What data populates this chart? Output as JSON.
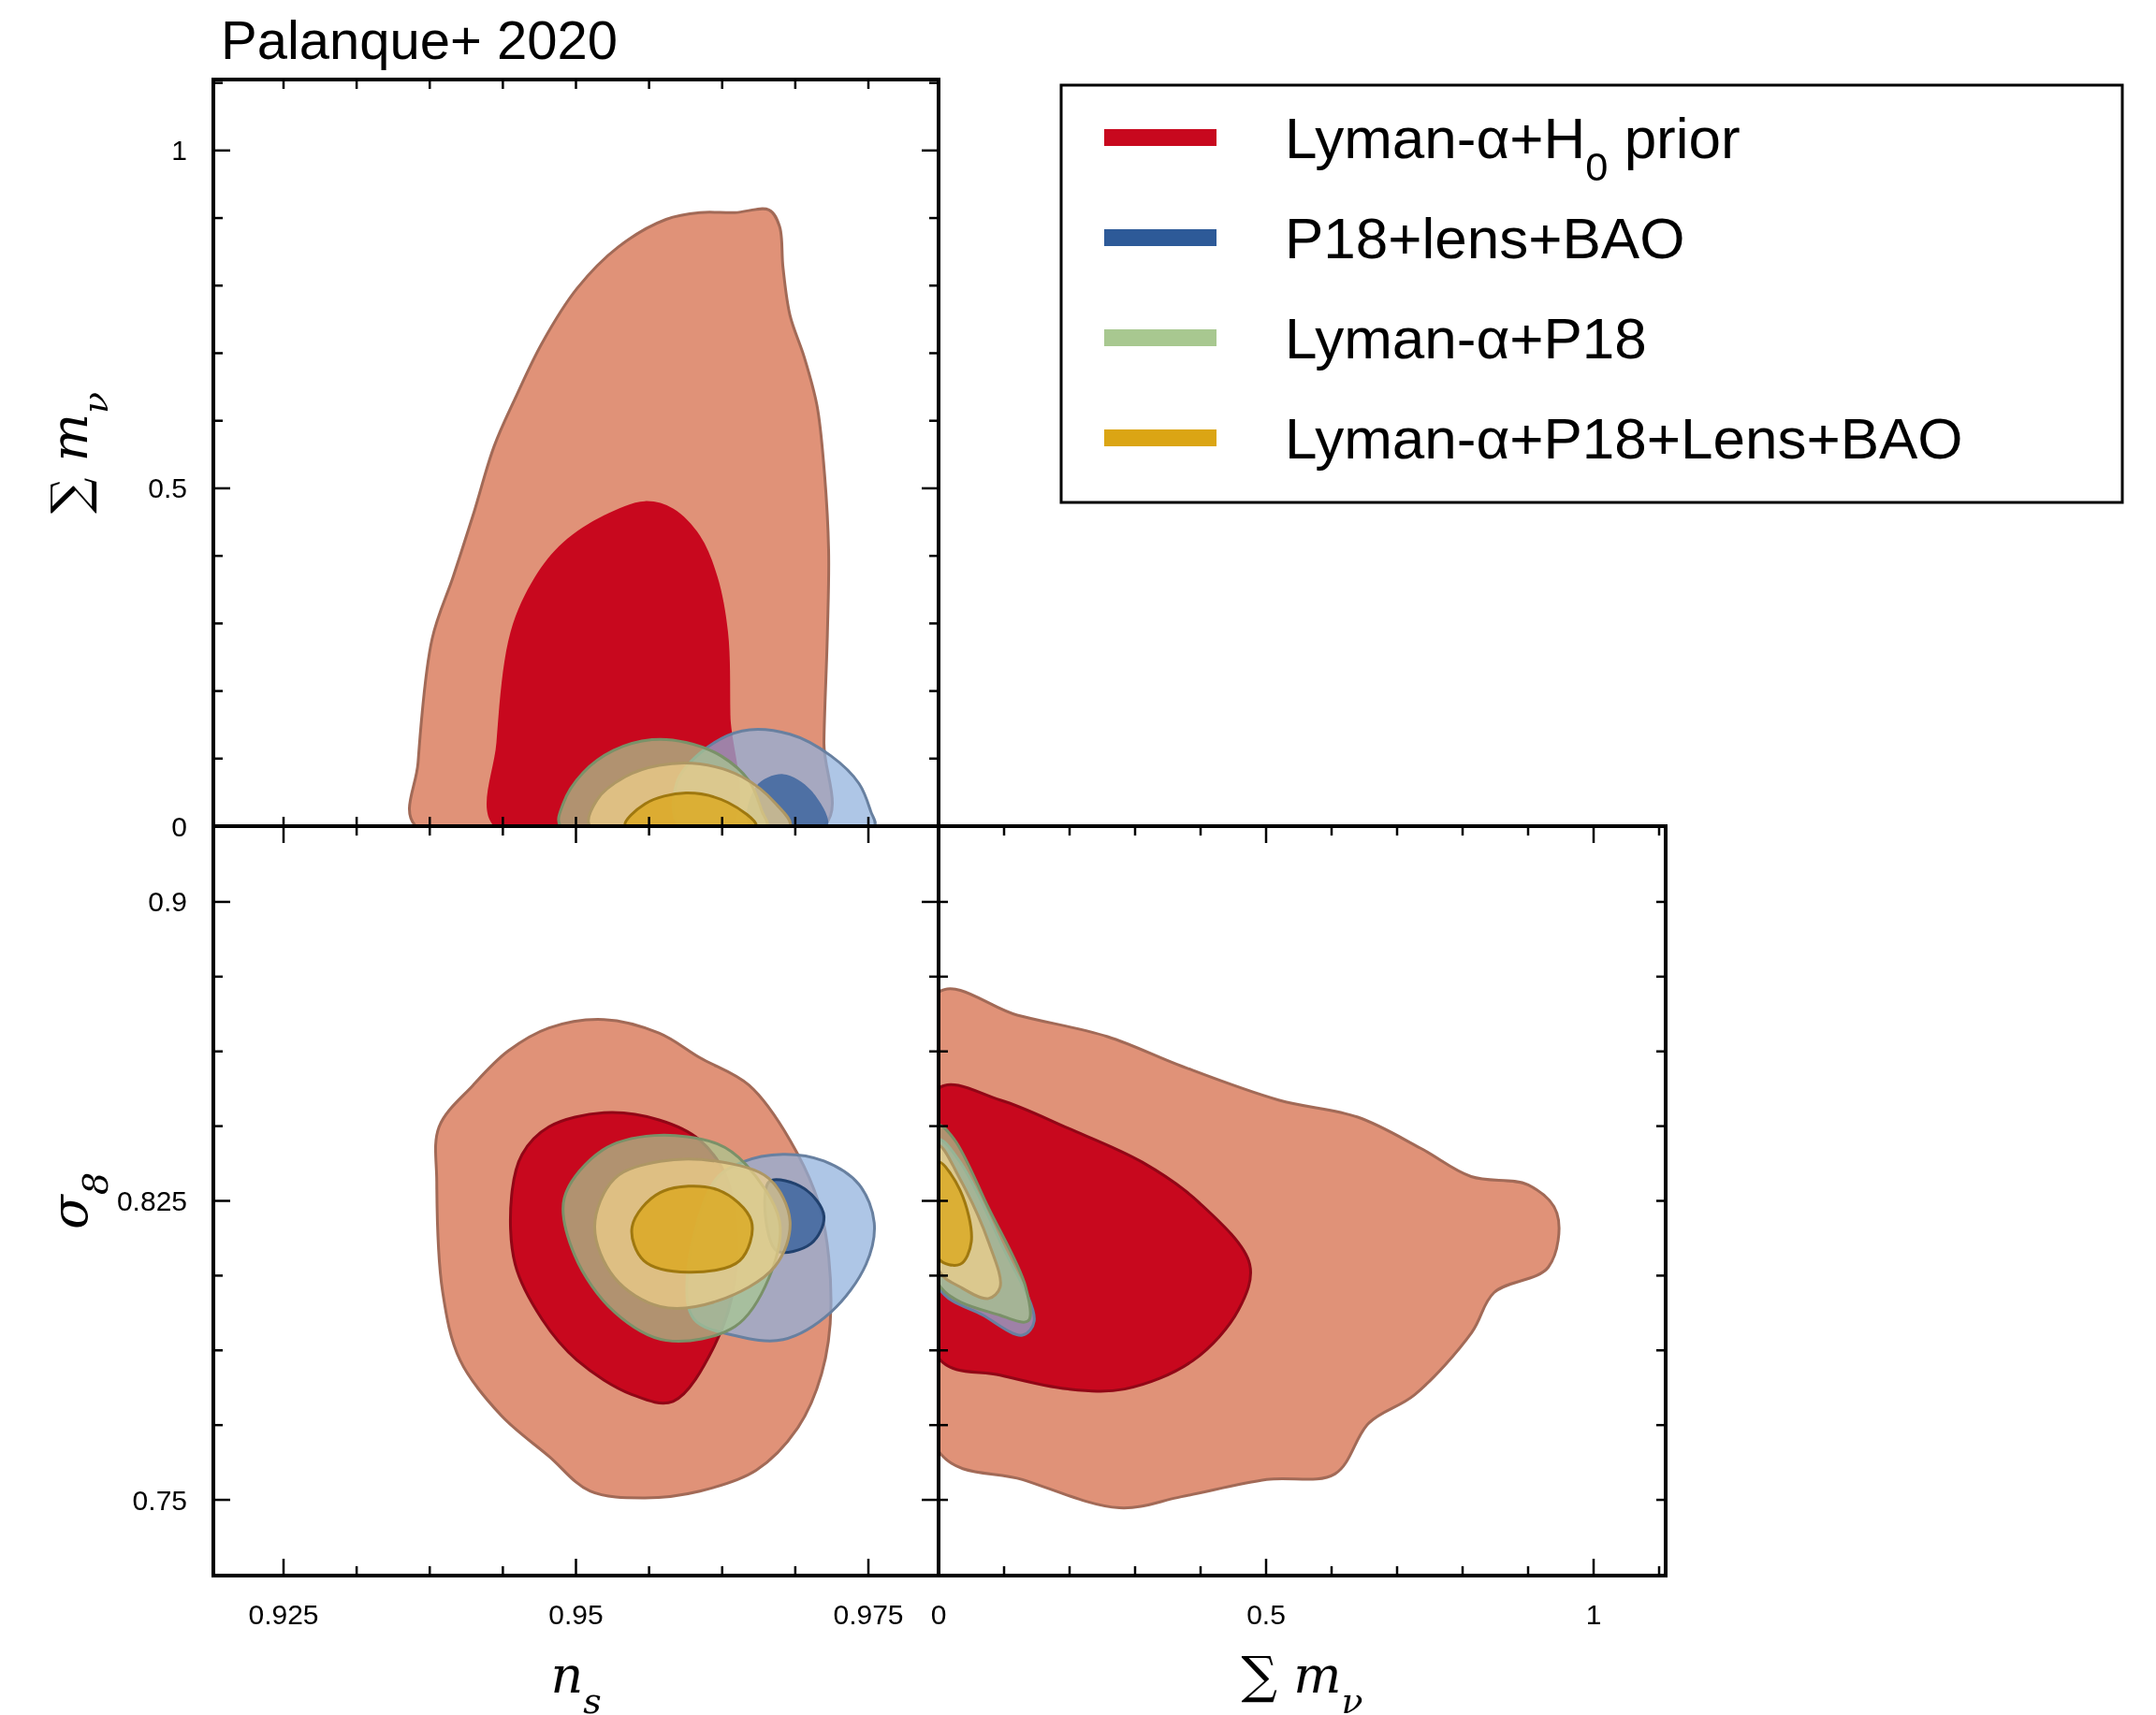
{
  "chart_data": [
    {
      "type": "area",
      "title": "Palanque+ 2020",
      "ylabel": "∑ m$_{ν}$",
      "legend": "right",
      "tick_labels": "y",
      "xlim": [
        0.919,
        0.981
      ],
      "ylim": [
        0,
        1.105
      ],
      "xticks": [
        {
          "value": 0.925,
          "label": null
        },
        {
          "value": 0.93125,
          "label": null
        },
        {
          "value": 0.9375,
          "label": null
        },
        {
          "value": 0.94375,
          "label": null
        },
        {
          "value": 0.95,
          "label": null
        },
        {
          "value": 0.95625,
          "label": null
        },
        {
          "value": 0.9625,
          "label": null
        },
        {
          "value": 0.96875,
          "label": null
        },
        {
          "value": 0.975,
          "label": null
        }
      ],
      "yticks": [
        0,
        {
          "value": 0.1,
          "label": null
        },
        {
          "value": 0.2,
          "label": null
        },
        {
          "value": 0.3,
          "label": null
        },
        {
          "value": 0.4,
          "label": null
        },
        0.5,
        {
          "value": 0.6,
          "label": null
        },
        {
          "value": 0.7,
          "label": null
        },
        {
          "value": 0.8,
          "label": null
        },
        {
          "value": 0.9,
          "label": null
        },
        1,
        {
          "value": 1.1,
          "label": null
        }
      ],
      "series": [
        {
          "color": "#e09278",
          "x": [
            0.9363,
            0.9365,
            0.9377,
            0.9395,
            0.9412,
            0.943,
            0.9448,
            0.9471,
            0.9501,
            0.9536,
            0.9577,
            0.9606,
            0.9636,
            0.9665,
            0.9674,
            0.9677,
            0.9683,
            0.9695,
            0.9706,
            0.9712,
            0.9716,
            0.9715,
            0.9712,
            0.9712
          ],
          "values": [
            0,
            0.094,
            0.277,
            0.369,
            0.46,
            0.562,
            0.633,
            0.715,
            0.796,
            0.857,
            0.898,
            0.908,
            0.908,
            0.912,
            0.888,
            0.827,
            0.756,
            0.695,
            0.623,
            0.532,
            0.409,
            0.287,
            0.124,
            0
          ]
        },
        {
          "name": "Lyman-α+H$_{0}$ prior",
          "color": "#c8081e",
          "x": [
            0.943,
            0.9432,
            0.9444,
            0.9465,
            0.9489,
            0.9524,
            0.9559,
            0.9583,
            0.9606,
            0.9621,
            0.963,
            0.9632,
            0.9632
          ],
          "values": [
            0,
            0.124,
            0.287,
            0.369,
            0.42,
            0.46,
            0.481,
            0.47,
            0.43,
            0.369,
            0.287,
            0.165,
            0
          ]
        },
        {
          "color": "#8fb0dc",
          "x": [
            0.9589,
            0.9586,
            0.9606,
            0.9642,
            0.9683,
            0.9718,
            0.9742,
            0.9752,
            0.9755
          ],
          "values": [
            0,
            0.063,
            0.108,
            0.141,
            0.136,
            0.104,
            0.063,
            0.022,
            0
          ]
        },
        {
          "name": "P18+lens+BAO",
          "color": "#2d5a98",
          "x": [
            0.9648,
            0.9654,
            0.9677,
            0.9701,
            0.9715
          ],
          "values": [
            0,
            0.059,
            0.077,
            0.053,
            0
          ]
        },
        {
          "name": "Lyman-α+P18",
          "color": "#a8c890",
          "x": [
            0.9487,
            0.9489,
            0.9506,
            0.9532,
            0.9565,
            0.9594,
            0.9624,
            0.9648,
            0.9659,
            0.9663
          ],
          "values": [
            0,
            0.033,
            0.079,
            0.112,
            0.128,
            0.124,
            0.104,
            0.067,
            0.022,
            0
          ]
        },
        {
          "color": "#f0d08a",
          "x": [
            0.9512,
            0.9518,
            0.9542,
            0.9571,
            0.9606,
            0.9642,
            0.9671,
            0.9683
          ],
          "values": [
            0,
            0.039,
            0.073,
            0.09,
            0.092,
            0.073,
            0.033,
            0
          ]
        },
        {
          "name": "Lyman-α+P18+Lens+BAO",
          "color": "#dba514",
          "x": [
            0.9542,
            0.9559,
            0.9594,
            0.963,
            0.9654
          ],
          "values": [
            0,
            0.033,
            0.049,
            0.035,
            0
          ]
        }
      ]
    },
    {
      "type": "area",
      "xlabel": "n$_{s}$",
      "ylabel": "σ$_{8}$",
      "xlim": [
        0.919,
        0.981
      ],
      "ylim": [
        0.731,
        0.919
      ],
      "xticks": [
        0.925,
        {
          "value": 0.93125,
          "label": null
        },
        {
          "value": 0.9375,
          "label": null
        },
        {
          "value": 0.94375,
          "label": null
        },
        0.95,
        {
          "value": 0.95625,
          "label": null
        },
        {
          "value": 0.9625,
          "label": null
        },
        {
          "value": 0.96875,
          "label": null
        },
        0.975
      ],
      "yticks": [
        0.75,
        {
          "value": 0.76875,
          "label": null
        },
        {
          "value": 0.7875,
          "label": null
        },
        {
          "value": 0.80625,
          "label": null
        },
        0.825,
        {
          "value": 0.84375,
          "label": null
        },
        {
          "value": 0.8625,
          "label": null
        },
        {
          "value": 0.88125,
          "label": null
        },
        0.9
      ],
      "series": [
        {
          "color": "#e09278",
          "x": [
            0.9381,
            0.9383,
            0.9412,
            0.9442,
            0.9477,
            0.9524,
            0.9571,
            0.9606,
            0.9648,
            0.9683,
            0.9709,
            0.9718,
            0.971,
            0.9689,
            0.9654,
            0.9606,
            0.9559,
            0.9512,
            0.9477,
            0.9436,
            0.9401,
            0.9386
          ],
          "values": [
            0.8298,
            0.8436,
            0.854,
            0.8626,
            0.8684,
            0.8705,
            0.8671,
            0.8609,
            0.854,
            0.8402,
            0.8229,
            0.7988,
            0.7816,
            0.7678,
            0.7574,
            0.7522,
            0.7505,
            0.7522,
            0.7609,
            0.7712,
            0.785,
            0.8022
          ]
        },
        {
          "color": "#c8081e",
          "x": [
            0.9445,
            0.9454,
            0.9477,
            0.9524,
            0.9571,
            0.9606,
            0.963,
            0.9636,
            0.9618,
            0.9583,
            0.9548,
            0.9501,
            0.9471,
            0.9448
          ],
          "values": [
            0.8264,
            0.8367,
            0.8436,
            0.8471,
            0.8453,
            0.8402,
            0.8298,
            0.8057,
            0.7884,
            0.7747,
            0.7764,
            0.785,
            0.7953,
            0.8091
          ]
        },
        {
          "color": "#8fb0dc",
          "x": [
            0.9618,
            0.9642,
            0.9677,
            0.9712,
            0.9742,
            0.9755,
            0.9748,
            0.9718,
            0.9677,
            0.9636,
            0.9601,
            0.9595
          ],
          "values": [
            0.8298,
            0.8347,
            0.8367,
            0.835,
            0.8291,
            0.8195,
            0.8091,
            0.7971,
            0.7902,
            0.7912,
            0.7953,
            0.8057
          ]
        },
        {
          "color": "#2d5a98",
          "x": [
            0.9665,
            0.9695,
            0.9712,
            0.9701,
            0.9671
          ],
          "values": [
            0.8298,
            0.8281,
            0.8212,
            0.8143,
            0.8126
          ]
        },
        {
          "color": "#a8c890",
          "x": [
            0.949,
            0.9523,
            0.9567,
            0.9621,
            0.9645,
            0.9674,
            0.9665,
            0.9636,
            0.9577,
            0.9533,
            0.9499
          ],
          "values": [
            0.8257,
            0.8378,
            0.8414,
            0.8393,
            0.8342,
            0.8199,
            0.8057,
            0.7935,
            0.79,
            0.7971,
            0.8113
          ]
        },
        {
          "color": "#f0d08a",
          "x": [
            0.9516,
            0.9533,
            0.9572,
            0.9621,
            0.9665,
            0.9683,
            0.967,
            0.9621,
            0.9572,
            0.9533
          ],
          "values": [
            0.8185,
            0.8306,
            0.8349,
            0.8349,
            0.8306,
            0.8199,
            0.8085,
            0.7999,
            0.7985,
            0.8057
          ]
        },
        {
          "color": "#dba514",
          "x": [
            0.9548,
            0.9572,
            0.9621,
            0.965,
            0.964,
            0.9596,
            0.9558
          ],
          "values": [
            0.8185,
            0.8271,
            0.8278,
            0.8199,
            0.81,
            0.8071,
            0.81
          ]
        }
      ]
    },
    {
      "type": "area",
      "xlabel": "∑ m$_{ν}$",
      "tick_labels": "x",
      "xlim": [
        0,
        1.11
      ],
      "ylim": [
        0.731,
        0.919
      ],
      "xticks": [
        0,
        {
          "value": 0.1,
          "label": null
        },
        {
          "value": 0.2,
          "label": null
        },
        {
          "value": 0.3,
          "label": null
        },
        {
          "value": 0.4,
          "label": null
        },
        0.5,
        {
          "value": 0.6,
          "label": null
        },
        {
          "value": 0.7,
          "label": null
        },
        {
          "value": 0.8,
          "label": null
        },
        {
          "value": 0.9,
          "label": null
        },
        1,
        {
          "value": 1.1,
          "label": null
        }
      ],
      "yticks": [
        {
          "value": 0.75,
          "label": null
        },
        {
          "value": 0.76875,
          "label": null
        },
        {
          "value": 0.7875,
          "label": null
        },
        {
          "value": 0.80625,
          "label": null
        },
        {
          "value": 0.825,
          "label": null
        },
        {
          "value": 0.84375,
          "label": null
        },
        {
          "value": 0.8625,
          "label": null
        },
        {
          "value": 0.88125,
          "label": null
        },
        {
          "value": 0.9,
          "label": null
        }
      ],
      "series": [
        {
          "color": "#e09278",
          "x": [
            0,
            0.12,
            0.258,
            0.371,
            0.519,
            0.64,
            0.736,
            0.813,
            0.9,
            0.944,
            0.931,
            0.848,
            0.814,
            0.727,
            0.657,
            0.605,
            0.501,
            0.371,
            0.276,
            0.128,
            0
          ],
          "values": [
            0.8773,
            0.8716,
            0.8662,
            0.8588,
            0.8503,
            0.846,
            0.8382,
            0.8311,
            0.829,
            0.8219,
            0.8084,
            0.802,
            0.792,
            0.7764,
            0.7693,
            0.7565,
            0.7551,
            0.7508,
            0.748,
            0.7551,
            0.7622
          ]
        },
        {
          "color": "#c8081e",
          "x": [
            0,
            0.094,
            0.198,
            0.311,
            0.397,
            0.475,
            0.458,
            0.388,
            0.284,
            0.198,
            0.094,
            0
          ],
          "values": [
            0.8532,
            0.8503,
            0.8432,
            0.8347,
            0.8247,
            0.8091,
            0.7977,
            0.7849,
            0.7778,
            0.7778,
            0.7813,
            0.7856
          ]
        },
        {
          "color": "#8fb0dc",
          "x": [
            0,
            0.033,
            0.094,
            0.146,
            0.128,
            0.068,
            0
          ],
          "values": [
            0.8404,
            0.8347,
            0.8148,
            0.7949,
            0.7913,
            0.7963,
            0.8034
          ]
        },
        {
          "color": "#a8c890",
          "x": [
            0,
            0.024,
            0.076,
            0.133,
            0.137,
            0.094,
            0
          ],
          "values": [
            0.8439,
            0.8404,
            0.8233,
            0.8034,
            0.7949,
            0.7963,
            0.8041
          ]
        },
        {
          "color": "#f0d08a",
          "x": [
            0,
            0.033,
            0.076,
            0.094,
            0.076,
            0.033,
            0
          ],
          "values": [
            0.8389,
            0.8304,
            0.8148,
            0.8034,
            0.8005,
            0.8034,
            0.8077
          ]
        },
        {
          "color": "#dba514",
          "x": [
            0,
            0.033,
            0.05,
            0.033,
            0
          ],
          "values": [
            0.8347,
            0.8276,
            0.8148,
            0.8091,
            0.8105
          ]
        }
      ]
    }
  ]
}
